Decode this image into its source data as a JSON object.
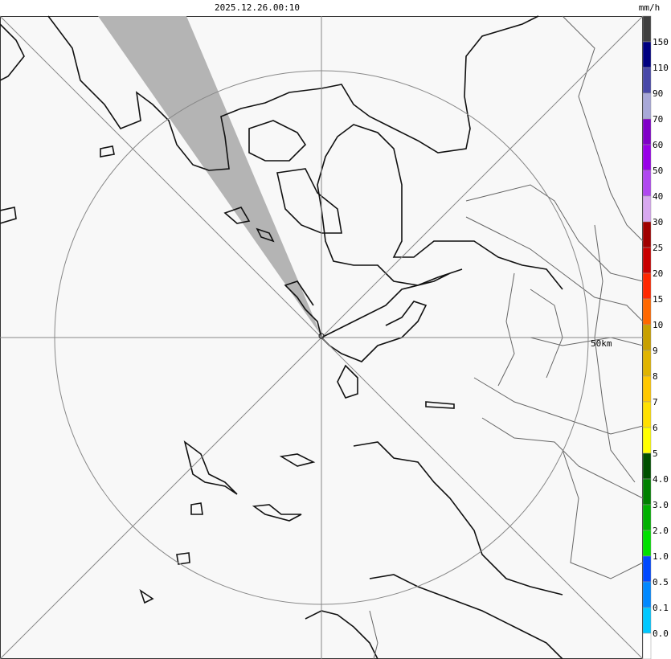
{
  "header": {
    "timestamp": "2025.12.26.00:10",
    "unit": "mm/h"
  },
  "map": {
    "range_label": "50km"
  },
  "legend": {
    "colors": [
      "#404040",
      "#000080",
      "#4848a8",
      "#a8a8d8",
      "#8000c8",
      "#9800e8",
      "#b048f0",
      "#d8a8f0",
      "#a00000",
      "#c80000",
      "#ff2800",
      "#ff6800",
      "#c8a000",
      "#e0b400",
      "#ffc800",
      "#ffe000",
      "#ffff00",
      "#005000",
      "#008000",
      "#00b000",
      "#00e000",
      "#0048ff",
      "#0088ff",
      "#00c8ff",
      "#ffffff"
    ],
    "labels": [
      "150",
      "110",
      "90",
      "70",
      "60",
      "50",
      "40",
      "30",
      "25",
      "20",
      "15",
      "10",
      "9",
      "8",
      "7",
      "6",
      "5",
      "4.0",
      "3.0",
      "2.0",
      "1.0",
      "0.5",
      "0.1",
      "0.0"
    ]
  }
}
